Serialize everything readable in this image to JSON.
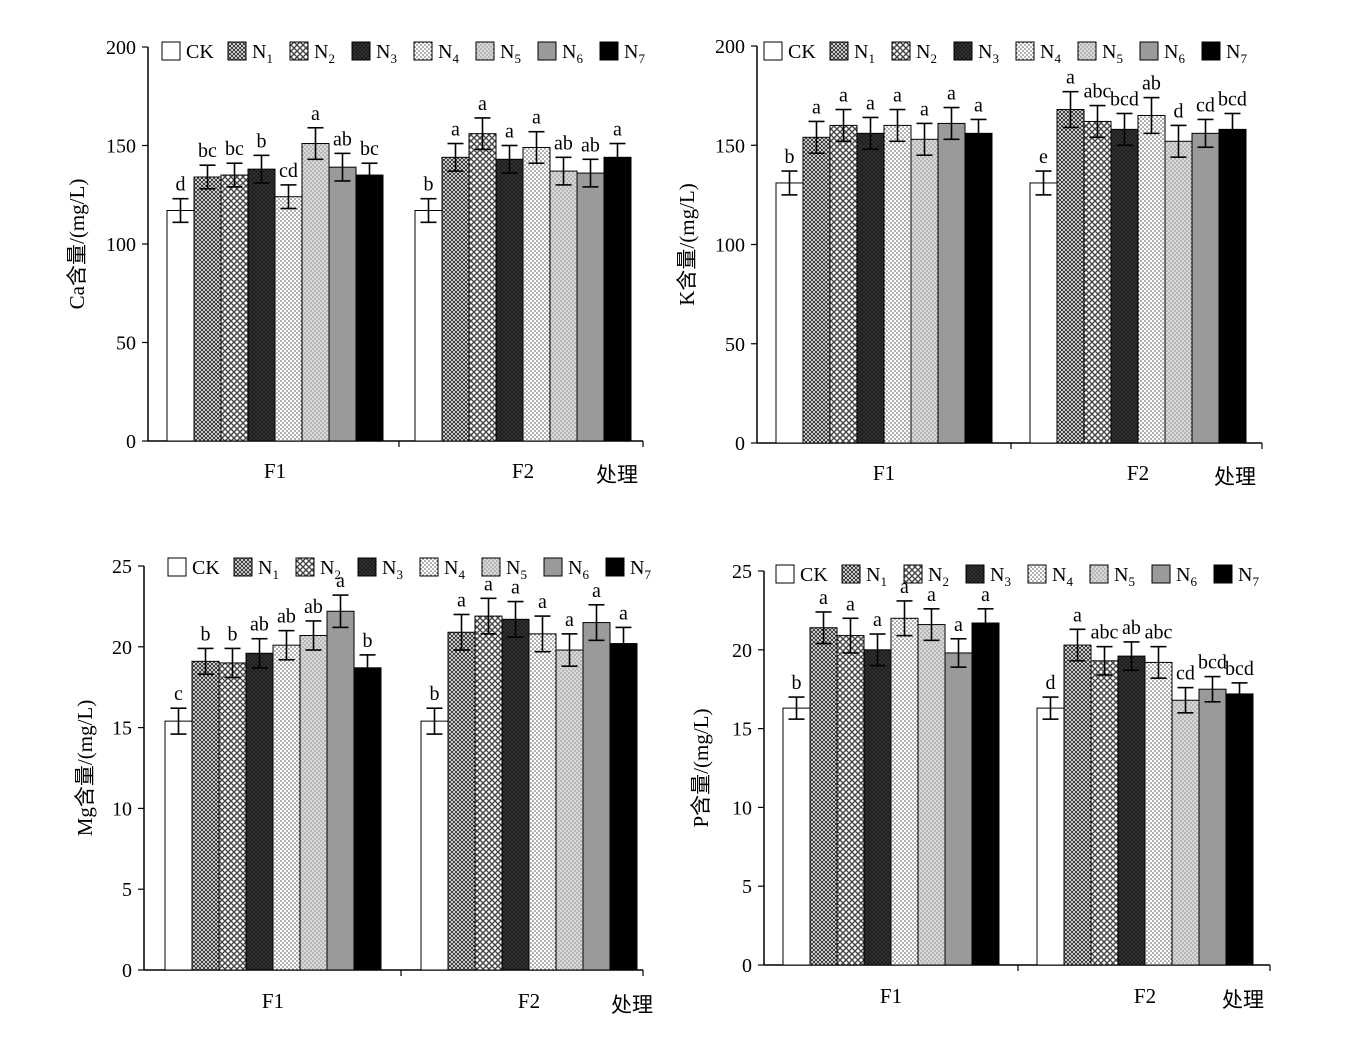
{
  "legend": [
    "CK",
    "N1",
    "N2",
    "N3",
    "N4",
    "N5",
    "N6",
    "N7"
  ],
  "legend_sub": [
    "",
    "1",
    "2",
    "3",
    "4",
    "5",
    "6",
    "7"
  ],
  "chart_data": [
    {
      "type": "bar",
      "ylabel": "Ca含量/(mg/L)",
      "xlabel": "处理",
      "categories": [
        "F1",
        "F2"
      ],
      "ylim": [
        0,
        200
      ],
      "yticks": [
        0,
        50,
        100,
        150,
        200
      ],
      "series": [
        {
          "name": "CK",
          "values": [
            117,
            117
          ],
          "errors": [
            6,
            6
          ],
          "labels": [
            "d",
            "b"
          ]
        },
        {
          "name": "N1",
          "values": [
            134,
            144
          ],
          "errors": [
            6,
            7
          ],
          "labels": [
            "bc",
            "a"
          ]
        },
        {
          "name": "N2",
          "values": [
            135,
            156
          ],
          "errors": [
            6,
            8
          ],
          "labels": [
            "bc",
            "a"
          ]
        },
        {
          "name": "N3",
          "values": [
            138,
            143
          ],
          "errors": [
            7,
            7
          ],
          "labels": [
            "b",
            "a"
          ]
        },
        {
          "name": "N4",
          "values": [
            124,
            149
          ],
          "errors": [
            6,
            8
          ],
          "labels": [
            "cd",
            "a"
          ]
        },
        {
          "name": "N5",
          "values": [
            151,
            137
          ],
          "errors": [
            8,
            7
          ],
          "labels": [
            "a",
            "ab"
          ]
        },
        {
          "name": "N6",
          "values": [
            139,
            136
          ],
          "errors": [
            7,
            7
          ],
          "labels": [
            "ab",
            "ab"
          ]
        },
        {
          "name": "N7",
          "values": [
            135,
            144
          ],
          "errors": [
            6,
            7
          ],
          "labels": [
            "bc",
            "a"
          ]
        }
      ]
    },
    {
      "type": "bar",
      "ylabel": "K含量/(mg/L)",
      "xlabel": "处理",
      "categories": [
        "F1",
        "F2"
      ],
      "ylim": [
        0,
        200
      ],
      "yticks": [
        0,
        50,
        100,
        150,
        200
      ],
      "series": [
        {
          "name": "CK",
          "values": [
            131,
            131
          ],
          "errors": [
            6,
            6
          ],
          "labels": [
            "b",
            "e"
          ]
        },
        {
          "name": "N1",
          "values": [
            154,
            168
          ],
          "errors": [
            8,
            9
          ],
          "labels": [
            "a",
            "a"
          ]
        },
        {
          "name": "N2",
          "values": [
            160,
            162
          ],
          "errors": [
            8,
            8
          ],
          "labels": [
            "a",
            "abc"
          ]
        },
        {
          "name": "N3",
          "values": [
            156,
            158
          ],
          "errors": [
            8,
            8
          ],
          "labels": [
            "a",
            "bcd"
          ]
        },
        {
          "name": "N4",
          "values": [
            160,
            165
          ],
          "errors": [
            8,
            9
          ],
          "labels": [
            "a",
            "ab"
          ]
        },
        {
          "name": "N5",
          "values": [
            153,
            152
          ],
          "errors": [
            8,
            8
          ],
          "labels": [
            "a",
            "d"
          ]
        },
        {
          "name": "N6",
          "values": [
            161,
            156
          ],
          "errors": [
            8,
            7
          ],
          "labels": [
            "a",
            "cd"
          ]
        },
        {
          "name": "N7",
          "values": [
            156,
            158
          ],
          "errors": [
            7,
            8
          ],
          "labels": [
            "a",
            "bcd"
          ]
        }
      ]
    },
    {
      "type": "bar",
      "ylabel": "Mg含量/(mg/L)",
      "xlabel": "处理",
      "categories": [
        "F1",
        "F2"
      ],
      "ylim": [
        0,
        25
      ],
      "yticks": [
        0,
        5,
        10,
        15,
        20,
        25
      ],
      "series": [
        {
          "name": "CK",
          "values": [
            15.4,
            15.4
          ],
          "errors": [
            0.8,
            0.8
          ],
          "labels": [
            "c",
            "b"
          ]
        },
        {
          "name": "N1",
          "values": [
            19.1,
            20.9
          ],
          "errors": [
            0.8,
            1.1
          ],
          "labels": [
            "b",
            "a"
          ]
        },
        {
          "name": "N2",
          "values": [
            19.0,
            21.9
          ],
          "errors": [
            0.9,
            1.1
          ],
          "labels": [
            "b",
            "a"
          ]
        },
        {
          "name": "N3",
          "values": [
            19.6,
            21.7
          ],
          "errors": [
            0.9,
            1.1
          ],
          "labels": [
            "ab",
            "a"
          ]
        },
        {
          "name": "N4",
          "values": [
            20.1,
            20.8
          ],
          "errors": [
            0.9,
            1.1
          ],
          "labels": [
            "ab",
            "a"
          ]
        },
        {
          "name": "N5",
          "values": [
            20.7,
            19.8
          ],
          "errors": [
            0.9,
            1.0
          ],
          "labels": [
            "ab",
            "a"
          ]
        },
        {
          "name": "N6",
          "values": [
            22.2,
            21.5
          ],
          "errors": [
            1.0,
            1.1
          ],
          "labels": [
            "a",
            "a"
          ]
        },
        {
          "name": "N7",
          "values": [
            18.7,
            20.2
          ],
          "errors": [
            0.8,
            1.0
          ],
          "labels": [
            "b",
            "a"
          ]
        }
      ]
    },
    {
      "type": "bar",
      "ylabel": "P含量/(mg/L)",
      "xlabel": "处理",
      "categories": [
        "F1",
        "F2"
      ],
      "ylim": [
        0,
        25
      ],
      "yticks": [
        0,
        5,
        10,
        15,
        20,
        25
      ],
      "series": [
        {
          "name": "CK",
          "values": [
            16.3,
            16.3
          ],
          "errors": [
            0.7,
            0.7
          ],
          "labels": [
            "b",
            "d"
          ]
        },
        {
          "name": "N1",
          "values": [
            21.4,
            20.3
          ],
          "errors": [
            1.0,
            1.0
          ],
          "labels": [
            "a",
            "a"
          ]
        },
        {
          "name": "N2",
          "values": [
            20.9,
            19.3
          ],
          "errors": [
            1.1,
            0.9
          ],
          "labels": [
            "a",
            "abc"
          ]
        },
        {
          "name": "N3",
          "values": [
            20.0,
            19.6
          ],
          "errors": [
            1.0,
            0.9
          ],
          "labels": [
            "a",
            "ab"
          ]
        },
        {
          "name": "N4",
          "values": [
            22.0,
            19.2
          ],
          "errors": [
            1.1,
            1.0
          ],
          "labels": [
            "a",
            "abc"
          ]
        },
        {
          "name": "N5",
          "values": [
            21.6,
            16.8
          ],
          "errors": [
            1.0,
            0.8
          ],
          "labels": [
            "a",
            "cd"
          ]
        },
        {
          "name": "N6",
          "values": [
            19.8,
            17.5
          ],
          "errors": [
            0.9,
            0.8
          ],
          "labels": [
            "a",
            "bcd"
          ]
        },
        {
          "name": "N7",
          "values": [
            21.7,
            17.2
          ],
          "errors": [
            0.9,
            0.7
          ],
          "labels": [
            "a",
            "bcd"
          ]
        }
      ]
    }
  ]
}
